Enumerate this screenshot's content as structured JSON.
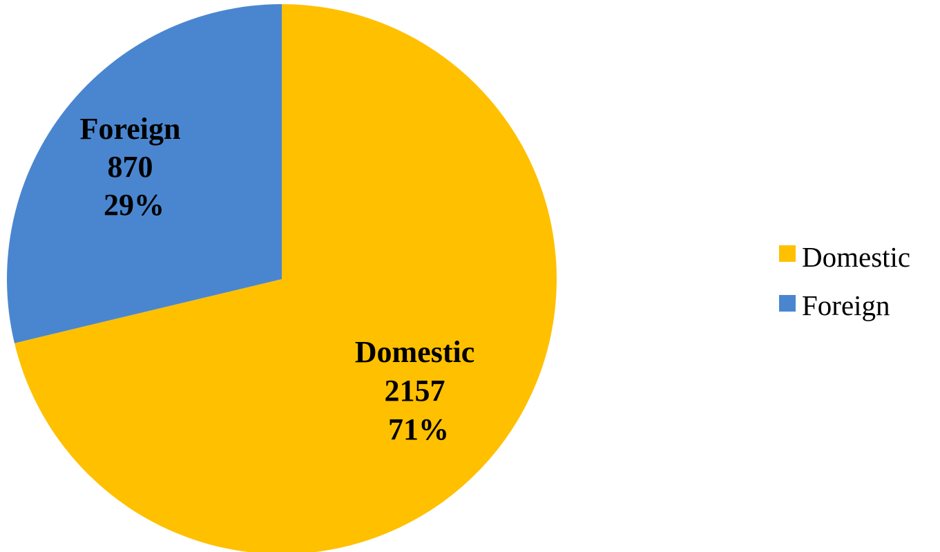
{
  "chart_data": {
    "type": "pie",
    "title": "",
    "series": [
      {
        "values": [
          2157,
          870
        ],
        "categories": [
          "Domestic",
          "Foreign"
        ]
      }
    ],
    "slices": [
      {
        "label": "Domestic",
        "value": 2157,
        "value_text": "2157",
        "percent_text": "71%",
        "color": "#FFC000"
      },
      {
        "label": "Foreign",
        "value": 870,
        "value_text": "870",
        "percent_text": "29%",
        "color": "#4A86D0"
      }
    ],
    "start_angle_deg": 0,
    "direction": "clockwise",
    "legend": {
      "position": "right",
      "entries": [
        "Domestic",
        "Foreign"
      ]
    }
  }
}
